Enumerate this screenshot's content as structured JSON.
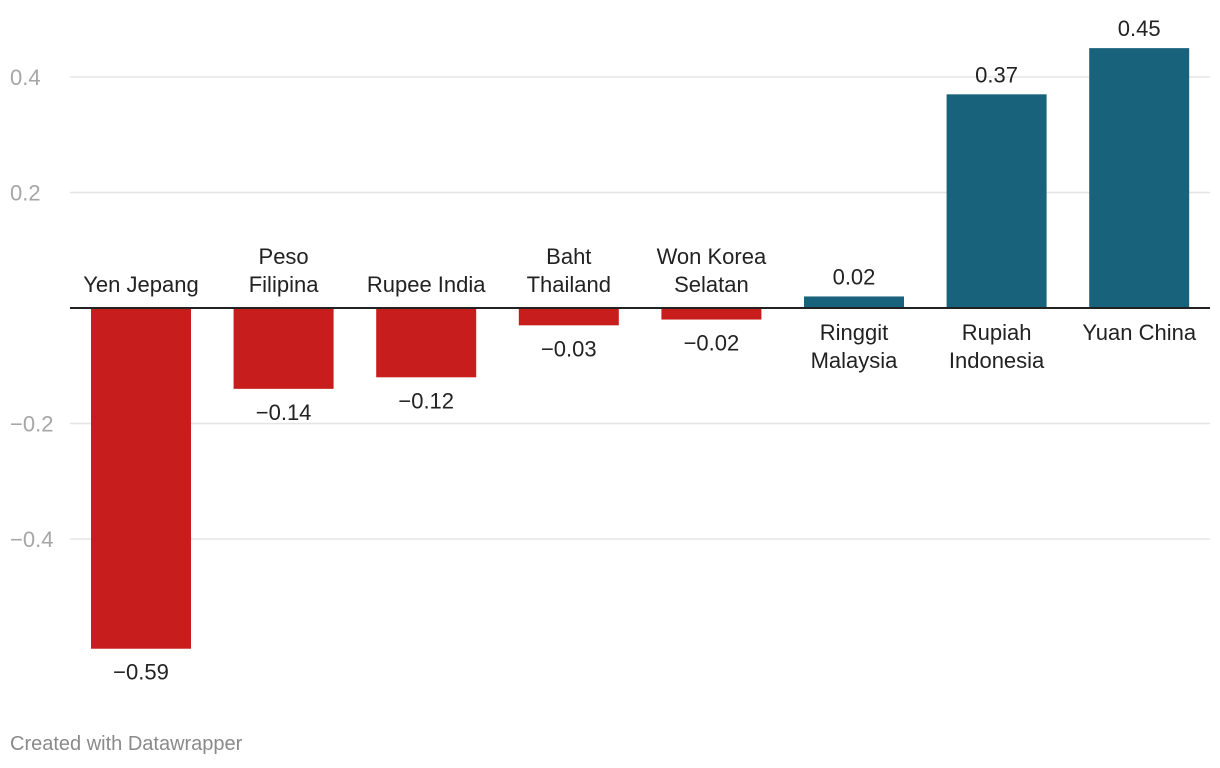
{
  "chart_data": {
    "type": "bar",
    "categories": [
      "Yen Jepang",
      "Peso Filipina",
      "Rupee India",
      "Baht Thailand",
      "Won Korea Selatan",
      "Ringgit Malaysia",
      "Rupiah Indonesia",
      "Yuan China"
    ],
    "category_lines": [
      [
        "Yen Jepang"
      ],
      [
        "Peso",
        "Filipina"
      ],
      [
        "Rupee India"
      ],
      [
        "Baht",
        "Thailand"
      ],
      [
        "Won Korea",
        "Selatan"
      ],
      [
        "Ringgit",
        "Malaysia"
      ],
      [
        "Rupiah",
        "Indonesia"
      ],
      [
        "Yuan China"
      ]
    ],
    "values": [
      -0.59,
      -0.14,
      -0.12,
      -0.03,
      -0.02,
      0.02,
      0.37,
      0.45
    ],
    "value_labels": [
      "−0.59",
      "−0.14",
      "−0.12",
      "−0.03",
      "−0.02",
      "0.02",
      "0.37",
      "0.45"
    ],
    "yticks": [
      0.4,
      0.2,
      -0.2,
      -0.4
    ],
    "ytick_labels": [
      "0.4",
      "0.2",
      "−0.2",
      "−0.4"
    ],
    "ylim": [
      -0.59,
      0.45
    ],
    "grid": true,
    "colors": {
      "negative": "#c71e1d",
      "positive": "#18627b",
      "grid": "#e5e5e5",
      "axis": "#222222"
    },
    "title": "",
    "xlabel": "",
    "ylabel": ""
  },
  "footer": {
    "credit": "Created with Datawrapper"
  }
}
